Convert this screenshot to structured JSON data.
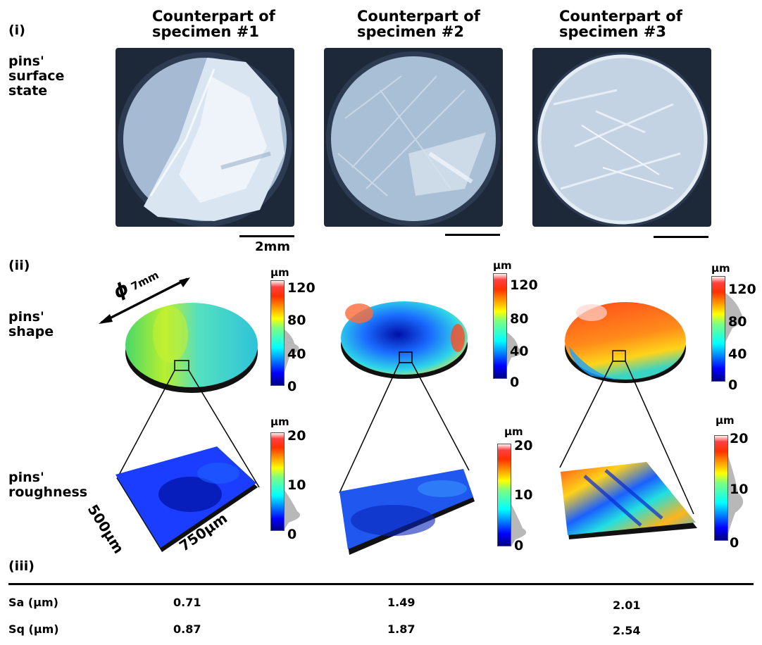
{
  "headers": {
    "col1": [
      "Counterpart of",
      "specimen #1"
    ],
    "col2": [
      "Counterpart of",
      "specimen #2"
    ],
    "col3": [
      "Counterpart of",
      "specimen #3"
    ]
  },
  "sections": {
    "i": "(i)",
    "ii": "(ii)",
    "iii": "(iii)"
  },
  "row_labels": {
    "surface": [
      "pins'",
      "surface",
      "state"
    ],
    "shape": [
      "pins'",
      "shape"
    ],
    "roughness": [
      "pins'",
      "roughness"
    ]
  },
  "scale_bar_label": "2mm",
  "diameter_label": {
    "symbol": "ϕ",
    "value": "7mm"
  },
  "roughness_dims": {
    "width": "500μm",
    "length": "750μm"
  },
  "colorbar": {
    "unit": "μm",
    "shape_ticks": [
      "120",
      "80",
      "40",
      "0"
    ],
    "roughness_ticks": [
      "20",
      "10",
      "0"
    ]
  },
  "table": {
    "rows": [
      {
        "label": "Sa (μm)",
        "values": [
          "0.71",
          "1.49",
          "2.01"
        ]
      },
      {
        "label": "Sq (μm)",
        "values": [
          "0.87",
          "1.87",
          "2.54"
        ]
      }
    ]
  },
  "colors": {
    "photo_background": "#1f2a3a",
    "pin_face": "#a9bfd6",
    "jet_low": "#00008f",
    "jet_mid": "#7fff7f",
    "jet_high": "#ff0000"
  }
}
